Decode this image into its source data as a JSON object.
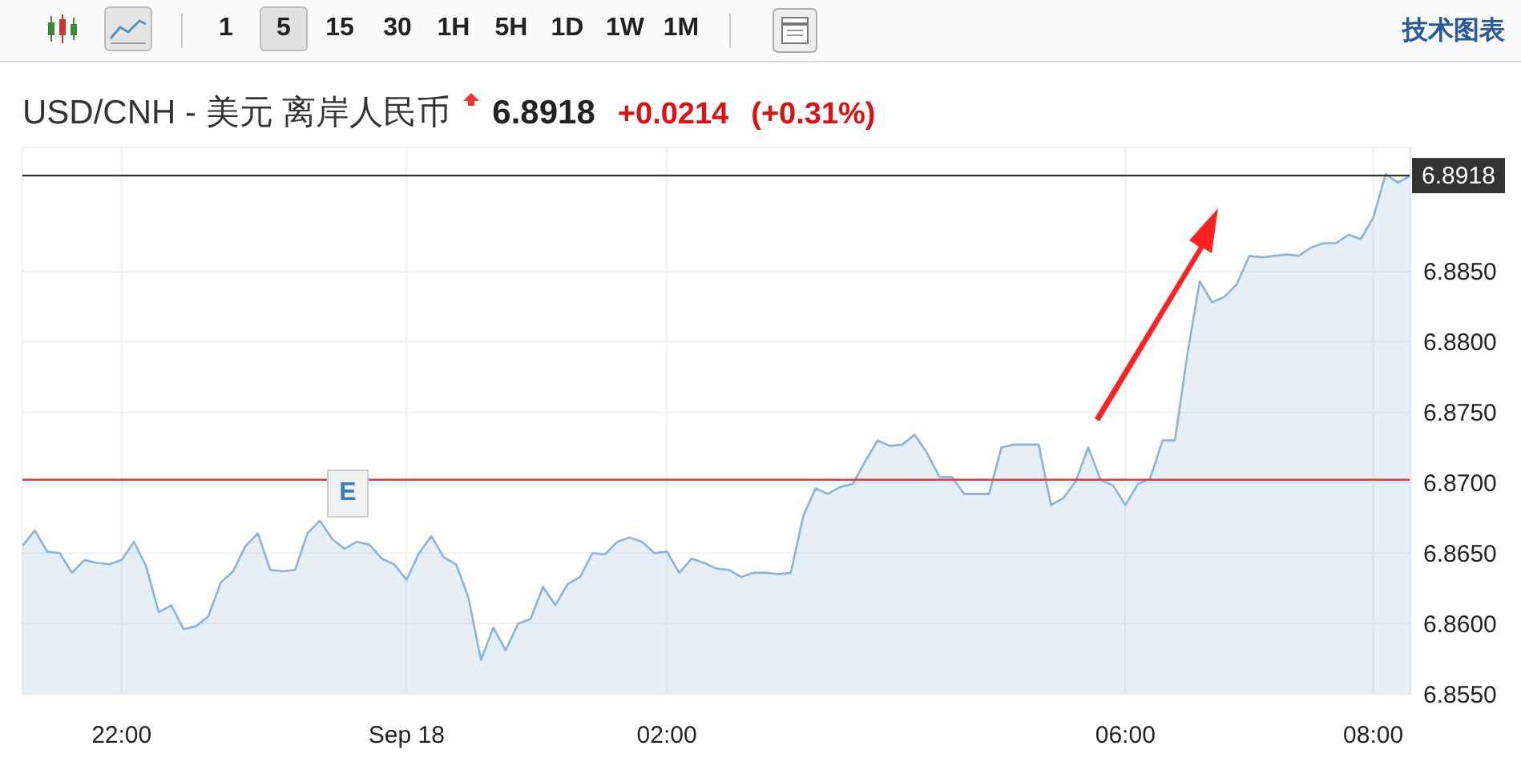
{
  "chart_data": {
    "type": "area",
    "title": "USD/CNH - 美元 离岸人民币",
    "categories": [
      null,
      null,
      null,
      null,
      null,
      null,
      null,
      null,
      "22:00",
      null,
      null,
      null,
      null,
      null,
      null,
      null,
      null,
      null,
      null,
      null,
      null,
      null,
      null,
      null,
      null,
      null,
      null,
      null,
      null,
      null,
      null,
      "Sep 18",
      null,
      null,
      null,
      null,
      null,
      null,
      null,
      null,
      null,
      null,
      null,
      null,
      null,
      null,
      null,
      null,
      null,
      null,
      null,
      null,
      "02:00",
      null,
      null,
      null,
      null,
      null,
      null,
      null,
      null,
      null,
      null,
      null,
      null,
      null,
      null,
      null,
      null,
      null,
      null,
      null,
      null,
      null,
      null,
      null,
      null,
      null,
      null,
      null,
      null,
      null,
      null,
      null,
      null,
      null,
      null,
      null,
      null,
      "06:00",
      null,
      null,
      null,
      null,
      null,
      null,
      null,
      null,
      null,
      null,
      null,
      null,
      null,
      null,
      null,
      null,
      null,
      null,
      null,
      "08:00",
      null,
      null,
      null
    ],
    "series": [
      {
        "color": "#8cb2d8",
        "values": [
          6.8655,
          6.8666,
          6.8651,
          6.865,
          6.8636,
          6.8645,
          6.8643,
          6.8642,
          6.8645,
          6.8658,
          6.864,
          6.8608,
          6.8613,
          6.8596,
          6.8598,
          6.8605,
          6.8629,
          6.8637,
          6.8655,
          6.8664,
          6.8638,
          6.8637,
          6.8638,
          6.8664,
          6.8673,
          6.866,
          6.8653,
          6.8658,
          6.8656,
          6.8646,
          6.8642,
          6.8631,
          6.865,
          6.8662,
          6.8647,
          6.8642,
          6.8618,
          6.8574,
          6.8597,
          6.8581,
          6.86,
          6.8603,
          6.8626,
          6.8613,
          6.8628,
          6.8633,
          6.865,
          6.8649,
          6.8658,
          6.8661,
          6.8658,
          6.865,
          6.8651,
          6.8636,
          6.8646,
          6.8643,
          6.8639,
          6.8638,
          6.8633,
          6.8636,
          6.8636,
          6.8635,
          6.8636,
          6.8676,
          6.8696,
          6.8692,
          6.8697,
          6.8699,
          6.8715,
          6.873,
          6.8726,
          6.8727,
          6.8734,
          6.8721,
          6.8704,
          6.8704,
          6.8692,
          6.8692,
          6.8692,
          6.8725,
          6.8727,
          6.8727,
          6.8727,
          6.8684,
          6.8689,
          6.8701,
          6.8725,
          6.8702,
          6.8698,
          6.8684,
          6.8699,
          6.8703,
          6.873,
          6.873,
          6.8791,
          6.8843,
          6.8828,
          6.8832,
          6.8841,
          6.8861,
          6.886,
          6.8861,
          6.8862,
          6.8861,
          6.8867,
          6.887,
          6.887,
          6.8876,
          6.8873,
          6.8888,
          6.8919,
          6.8913,
          6.8918
        ]
      }
    ],
    "ylim": [
      6.855,
      6.8938
    ],
    "yticks": [
      {
        "value": 6.855,
        "label": "6.8550"
      },
      {
        "value": 6.86,
        "label": "6.8600"
      },
      {
        "value": 6.865,
        "label": "6.8650"
      },
      {
        "value": 6.87,
        "label": "6.8700"
      },
      {
        "value": 6.875,
        "label": "6.8750"
      },
      {
        "value": 6.88,
        "label": "6.8800"
      },
      {
        "value": 6.885,
        "label": "6.8850"
      }
    ],
    "grid": true,
    "marker": "none",
    "line_style": "solid",
    "ref_lines": [
      {
        "axis": "y",
        "value": 6.8918,
        "label": "6.8918",
        "color": "#333333"
      },
      {
        "axis": "y",
        "value": 6.8702,
        "color": "#d04040"
      }
    ],
    "annotations": [
      "1 5 15 30 1H 5H 1D 1W 1M",
      "技术图表",
      "6.8918",
      "+0.0214",
      "(+0.31%)",
      "E"
    ]
  }
}
